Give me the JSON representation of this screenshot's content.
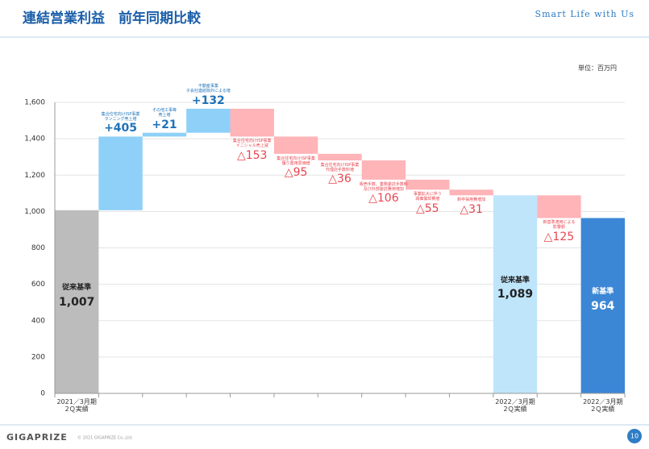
{
  "header": {
    "title": "連結営業利益　前年同期比較",
    "tagline": "Smart Life with Us"
  },
  "chart_data": {
    "type": "waterfall",
    "unit": "単位：百万円",
    "categories": [
      "2021／3月期\n2Ｑ実績",
      null,
      null,
      null,
      null,
      null,
      null,
      null,
      null,
      null,
      "2022／3月期\n2Ｑ実績",
      null,
      "2022／3月期\n2Ｑ実績"
    ],
    "measure": [
      "absolute",
      "relative",
      "relative",
      "relative",
      "relative",
      "relative",
      "relative",
      "relative",
      "relative",
      "relative",
      "absolute",
      "relative",
      "absolute"
    ],
    "values": [
      1007,
      405,
      21,
      132,
      -153,
      -95,
      -36,
      -106,
      -55,
      -31,
      1089,
      -125,
      964
    ],
    "value_labels": [
      "1,007",
      "+405",
      "+21",
      "+132",
      "△153",
      "△95",
      "△36",
      "△106",
      "△55",
      "△31",
      "1,089",
      "△125",
      "964"
    ],
    "bar_names": [
      "従来基準",
      null,
      null,
      null,
      null,
      null,
      null,
      null,
      null,
      null,
      "従来基準",
      null,
      "新基準"
    ],
    "notes": [
      null,
      "集合住宅向けISP事業\nランニング売上増",
      "その他工事等\n売上増",
      "不動産事業\n子会社連結除外による増",
      "集合住宅向けISP事業\nイニシャル売上減",
      "集合住宅向けISP事業\n獲り置用原価増",
      "集合住宅向けISP事業\n代理店手数料増",
      "販売手数、業務委託手数料\n及び外部委託費用増加",
      "事業拡大に伴う\n減価償却費増",
      "新卒採用費増加",
      null,
      "新基準適用による\n影響額",
      null
    ],
    "colors": [
      "#bcbcbc",
      "#8ed0f8",
      "#8ed0f8",
      "#8ed0f8",
      "#ffb4b8",
      "#ffb4b8",
      "#ffb4b8",
      "#ffb4b8",
      "#ffb4b8",
      "#ffb4b8",
      "#bfe5fb",
      "#ffb4b8",
      "#3b87d5"
    ],
    "ylim": [
      0,
      1600
    ],
    "yticks": [
      0,
      200,
      400,
      600,
      800,
      {
        "value": 1000,
        "label": "1,000"
      },
      {
        "value": 1200,
        "label": "1,200"
      },
      {
        "value": 1400,
        "label": "1,400"
      },
      {
        "value": 1600,
        "label": "1,600"
      }
    ],
    "grid": true
  },
  "footer": {
    "logo": "GIGAPRIZE",
    "copyright": "© 2021 GIGAPRIZE Co.,Ltd.",
    "page": 10
  }
}
